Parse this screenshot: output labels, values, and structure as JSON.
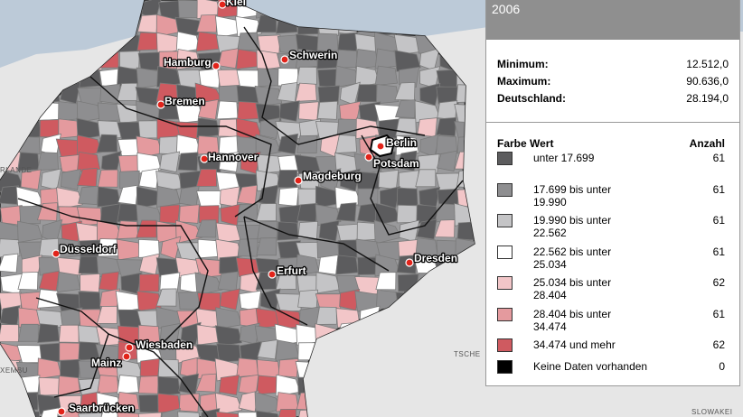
{
  "cities": [
    {
      "id": "kiel",
      "name": "Kiel"
    },
    {
      "id": "hamburg",
      "name": "Hamburg"
    },
    {
      "id": "schwerin",
      "name": "Schwerin"
    },
    {
      "id": "bremen",
      "name": "Bremen"
    },
    {
      "id": "hannover",
      "name": "Hannover"
    },
    {
      "id": "berlin",
      "name": "Berlin"
    },
    {
      "id": "potsdam",
      "name": "Potsdam"
    },
    {
      "id": "magdeburg",
      "name": "Magdeburg"
    },
    {
      "id": "duesseldorf",
      "name": "Düsseldorf"
    },
    {
      "id": "erfurt",
      "name": "Erfurt"
    },
    {
      "id": "dresden",
      "name": "Dresden"
    },
    {
      "id": "wiesbaden",
      "name": "Wiesbaden"
    },
    {
      "id": "mainz",
      "name": "Mainz"
    },
    {
      "id": "saarbruecken",
      "name": "Saarbrücken"
    }
  ],
  "neighbors": {
    "netherlands": "RLANDE",
    "luxembourg": "XEMBU",
    "czech": "TSCHE",
    "slovakia": "SLOWAKEI"
  },
  "legend": {
    "year": "2006",
    "stats": [
      {
        "label": "Minimum:",
        "value": "12.512,0"
      },
      {
        "label": "Maximum:",
        "value": "90.636,0"
      },
      {
        "label": "Deutschland:",
        "value": "28.194,0"
      }
    ],
    "header": {
      "color_value": "Farbe Wert",
      "count": "Anzahl"
    },
    "classes": [
      {
        "label": "unter 17.699",
        "count": "61",
        "color": "#5c5c5e"
      },
      {
        "label": "17.699 bis unter 19.990",
        "count": "61",
        "color": "#8e8e90"
      },
      {
        "label": "19.990 bis unter 22.562",
        "count": "61",
        "color": "#c4c4c6"
      },
      {
        "label": "22.562 bis unter 25.034",
        "count": "61",
        "color": "#ffffff"
      },
      {
        "label": "25.034 bis unter 28.404",
        "count": "62",
        "color": "#f2c6c8"
      },
      {
        "label": "28.404 bis unter 34.474",
        "count": "61",
        "color": "#e49a9e"
      },
      {
        "label": "34.474 und mehr",
        "count": "62",
        "color": "#cf5a60"
      },
      {
        "label": "Keine Daten vorhanden",
        "count": "0",
        "color": "#000000"
      }
    ]
  }
}
